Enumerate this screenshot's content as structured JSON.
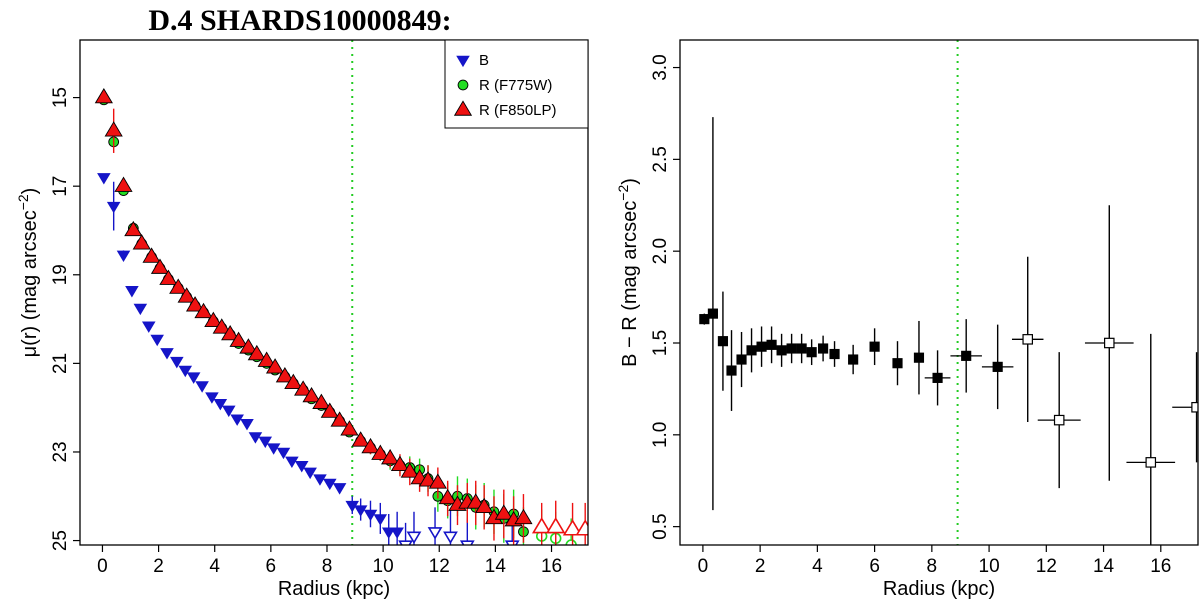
{
  "title": "D.4 SHARDS10000849:",
  "chart_data": [
    {
      "type": "scatter",
      "xlabel": "Radius (kpc)",
      "ylabel": "μ(r) (mag arcsec",
      "ylabel_sup": "−2",
      "ylabel_close": ")",
      "xlim": [
        -0.8,
        17.3
      ],
      "ylim": [
        25.1,
        13.7
      ],
      "y_reversed": true,
      "xticks": [
        0,
        2,
        4,
        6,
        8,
        10,
        12,
        14,
        16
      ],
      "yticks": [
        15,
        17,
        19,
        21,
        23,
        25
      ],
      "vline": {
        "x": 8.9,
        "color": "#00cc00",
        "style": "dotted"
      },
      "legend": {
        "position": "top-right",
        "entries": [
          {
            "label": "B",
            "marker": "triangle-down",
            "fill": "#1515c8"
          },
          {
            "label": "R (F775W)",
            "marker": "circle",
            "fill": "#22dd22"
          },
          {
            "label": "R (F850LP)",
            "marker": "triangle-up",
            "fill": "#ee1111"
          }
        ]
      },
      "series": [
        {
          "name": "B",
          "marker": "triangle-down",
          "color": "#1515c8",
          "x": [
            0.05,
            0.4,
            0.75,
            1.05,
            1.35,
            1.65,
            1.95,
            2.3,
            2.65,
            2.95,
            3.25,
            3.55,
            3.9,
            4.2,
            4.5,
            4.8,
            5.15,
            5.45,
            5.8,
            6.1,
            6.45,
            6.75,
            7.1,
            7.4,
            7.75,
            8.1,
            8.45,
            8.9,
            9.2,
            9.55,
            9.9,
            10.2,
            10.5,
            10.8,
            11.1,
            11.85,
            12.4,
            13.0,
            14.6
          ],
          "y": [
            16.8,
            17.45,
            18.55,
            19.35,
            19.75,
            20.15,
            20.45,
            20.75,
            20.95,
            21.15,
            21.3,
            21.5,
            21.75,
            21.9,
            22.05,
            22.25,
            22.35,
            22.65,
            22.75,
            22.9,
            23.0,
            23.2,
            23.3,
            23.45,
            23.6,
            23.7,
            23.8,
            24.2,
            24.3,
            24.4,
            24.5,
            24.8,
            24.8,
            25.1,
            24.9,
            24.8,
            24.9,
            25.1,
            25.1
          ],
          "yerr": [
            0.05,
            0.55,
            0.1,
            0.05,
            0.05,
            0.05,
            0.05,
            0.05,
            0.05,
            0.05,
            0.05,
            0.05,
            0.05,
            0.05,
            0.05,
            0.05,
            0.05,
            0.05,
            0.05,
            0.05,
            0.05,
            0.05,
            0.05,
            0.05,
            0.05,
            0.05,
            0.05,
            0.2,
            0.25,
            0.3,
            0.35,
            0.4,
            0.45,
            0.5,
            0.55,
            0.55,
            0.6,
            0.6,
            0.6
          ],
          "open": [
            false,
            false,
            false,
            false,
            false,
            false,
            false,
            false,
            false,
            false,
            false,
            false,
            false,
            false,
            false,
            false,
            false,
            false,
            false,
            false,
            false,
            false,
            false,
            false,
            false,
            false,
            false,
            false,
            false,
            false,
            false,
            false,
            false,
            true,
            true,
            true,
            true,
            true,
            true
          ]
        },
        {
          "name": "R (F775W)",
          "marker": "circle",
          "color": "#22dd22",
          "x": [
            0.05,
            0.4,
            0.75,
            1.1,
            1.4,
            1.75,
            2.05,
            2.35,
            2.7,
            3.0,
            3.3,
            3.6,
            3.95,
            4.25,
            4.55,
            4.85,
            5.2,
            5.5,
            5.85,
            6.15,
            6.5,
            6.8,
            7.15,
            7.45,
            7.8,
            8.1,
            8.45,
            8.8,
            9.2,
            9.55,
            9.9,
            10.25,
            10.6,
            10.95,
            11.3,
            11.6,
            11.95,
            12.3,
            12.65,
            13.0,
            13.3,
            13.6,
            13.95,
            14.3,
            14.65,
            15.0,
            15.65,
            16.15,
            16.7
          ],
          "y": [
            15.05,
            16.0,
            17.1,
            17.95,
            18.3,
            18.6,
            18.85,
            19.1,
            19.3,
            19.5,
            19.7,
            19.85,
            20.05,
            20.2,
            20.35,
            20.55,
            20.7,
            20.85,
            21.0,
            21.15,
            21.3,
            21.45,
            21.6,
            21.8,
            21.95,
            22.1,
            22.3,
            22.55,
            22.75,
            22.9,
            23.05,
            23.2,
            23.3,
            23.35,
            23.4,
            23.6,
            24.0,
            24.1,
            24.0,
            24.05,
            24.25,
            24.2,
            24.35,
            24.5,
            24.4,
            24.8,
            24.9,
            24.95,
            25.1
          ],
          "yerr": [
            0.05,
            0.1,
            0.05,
            0.05,
            0.05,
            0.05,
            0.05,
            0.05,
            0.05,
            0.05,
            0.05,
            0.05,
            0.05,
            0.05,
            0.05,
            0.05,
            0.05,
            0.05,
            0.05,
            0.05,
            0.05,
            0.05,
            0.05,
            0.05,
            0.05,
            0.05,
            0.05,
            0.1,
            0.1,
            0.15,
            0.15,
            0.2,
            0.2,
            0.25,
            0.25,
            0.3,
            0.35,
            0.4,
            0.45,
            0.45,
            0.5,
            0.5,
            0.5,
            0.55,
            0.55,
            0.55,
            0.6,
            0.6,
            0.6
          ],
          "open": [
            false,
            false,
            false,
            false,
            false,
            false,
            false,
            false,
            false,
            false,
            false,
            false,
            false,
            false,
            false,
            false,
            false,
            false,
            false,
            false,
            false,
            false,
            false,
            false,
            false,
            false,
            false,
            false,
            false,
            false,
            false,
            false,
            false,
            false,
            false,
            false,
            false,
            false,
            false,
            false,
            false,
            false,
            false,
            false,
            false,
            false,
            true,
            true,
            true
          ]
        },
        {
          "name": "R (F850LP)",
          "marker": "triangle-up",
          "color": "#ee1111",
          "x": [
            0.05,
            0.4,
            0.75,
            1.1,
            1.4,
            1.75,
            2.05,
            2.35,
            2.7,
            3.0,
            3.3,
            3.6,
            3.95,
            4.25,
            4.55,
            4.85,
            5.2,
            5.5,
            5.85,
            6.15,
            6.5,
            6.8,
            7.15,
            7.45,
            7.8,
            8.1,
            8.45,
            8.8,
            9.2,
            9.55,
            9.9,
            10.25,
            10.6,
            10.95,
            11.3,
            11.6,
            11.95,
            12.3,
            12.65,
            13.0,
            13.3,
            13.6,
            13.95,
            14.3,
            14.65,
            15.0,
            15.65,
            16.15,
            16.75,
            17.2
          ],
          "y": [
            15.0,
            15.75,
            17.0,
            18.0,
            18.3,
            18.6,
            18.85,
            19.1,
            19.3,
            19.5,
            19.7,
            19.85,
            20.05,
            20.2,
            20.35,
            20.5,
            20.65,
            20.8,
            20.95,
            21.1,
            21.3,
            21.45,
            21.6,
            21.75,
            21.9,
            22.1,
            22.3,
            22.5,
            22.75,
            22.9,
            23.05,
            23.15,
            23.3,
            23.45,
            23.6,
            23.65,
            23.7,
            24.05,
            24.2,
            24.15,
            24.15,
            24.25,
            24.5,
            24.4,
            24.55,
            24.5,
            24.7,
            24.7,
            24.75,
            24.75
          ],
          "yerr": [
            0.05,
            0.5,
            0.05,
            0.05,
            0.05,
            0.05,
            0.05,
            0.05,
            0.05,
            0.05,
            0.05,
            0.05,
            0.05,
            0.05,
            0.05,
            0.05,
            0.05,
            0.05,
            0.05,
            0.05,
            0.05,
            0.05,
            0.05,
            0.05,
            0.05,
            0.05,
            0.05,
            0.1,
            0.1,
            0.15,
            0.15,
            0.2,
            0.25,
            0.3,
            0.3,
            0.35,
            0.35,
            0.4,
            0.45,
            0.45,
            0.5,
            0.5,
            0.5,
            0.55,
            0.55,
            0.55,
            0.55,
            0.6,
            0.6,
            0.6
          ],
          "open": [
            false,
            false,
            false,
            false,
            false,
            false,
            false,
            false,
            false,
            false,
            false,
            false,
            false,
            false,
            false,
            false,
            false,
            false,
            false,
            false,
            false,
            false,
            false,
            false,
            false,
            false,
            false,
            false,
            false,
            false,
            false,
            false,
            false,
            false,
            false,
            false,
            false,
            false,
            false,
            false,
            false,
            false,
            false,
            false,
            false,
            false,
            true,
            true,
            true,
            true
          ]
        }
      ]
    },
    {
      "type": "scatter",
      "xlabel": "Radius (kpc)",
      "ylabel": "B − R (mag arcsec",
      "ylabel_sup": "−2",
      "ylabel_close": ")",
      "xlim": [
        -0.8,
        17.3
      ],
      "ylim": [
        0.4,
        3.15
      ],
      "xticks": [
        0,
        2,
        4,
        6,
        8,
        10,
        12,
        14,
        16
      ],
      "yticks": [
        0.5,
        1.0,
        1.5,
        2.0,
        2.5,
        3.0
      ],
      "ytick_labels": [
        "0.5",
        "1.0",
        "1.5",
        "2.0",
        "2.5",
        "3.0"
      ],
      "vline": {
        "x": 8.9,
        "color": "#00cc00",
        "style": "dotted"
      },
      "series": [
        {
          "marker": "square",
          "color": "#000000",
          "x": [
            0.05,
            0.35,
            0.7,
            1.0,
            1.35,
            1.7,
            2.05,
            2.4,
            2.75,
            3.1,
            3.45,
            3.8,
            4.2,
            4.6,
            5.25,
            6.0,
            6.8,
            7.55,
            8.2,
            9.2,
            10.3,
            11.35,
            12.45,
            14.2,
            15.65,
            17.25
          ],
          "y": [
            1.63,
            1.66,
            1.51,
            1.35,
            1.41,
            1.46,
            1.48,
            1.49,
            1.46,
            1.47,
            1.47,
            1.45,
            1.47,
            1.44,
            1.41,
            1.48,
            1.39,
            1.42,
            1.31,
            1.43,
            1.37,
            1.52,
            1.08,
            1.5,
            0.85,
            1.15
          ],
          "yerr": [
            0.03,
            1.07,
            0.27,
            0.22,
            0.15,
            0.12,
            0.11,
            0.1,
            0.09,
            0.08,
            0.08,
            0.07,
            0.07,
            0.07,
            0.08,
            0.1,
            0.12,
            0.2,
            0.15,
            0.2,
            0.23,
            0.45,
            0.37,
            0.75,
            0.7,
            0.3
          ],
          "xerr": [
            0.0,
            0.0,
            0.0,
            0.0,
            0.0,
            0.0,
            0.0,
            0.0,
            0.0,
            0.0,
            0.0,
            0.0,
            0.0,
            0.0,
            0.0,
            0.0,
            0.0,
            0.0,
            0.45,
            0.55,
            0.55,
            0.55,
            0.75,
            0.85,
            0.85,
            0.85
          ],
          "open": [
            false,
            false,
            false,
            false,
            false,
            false,
            false,
            false,
            false,
            false,
            false,
            false,
            false,
            false,
            false,
            false,
            false,
            false,
            false,
            false,
            false,
            true,
            true,
            true,
            true,
            true
          ]
        }
      ]
    }
  ]
}
